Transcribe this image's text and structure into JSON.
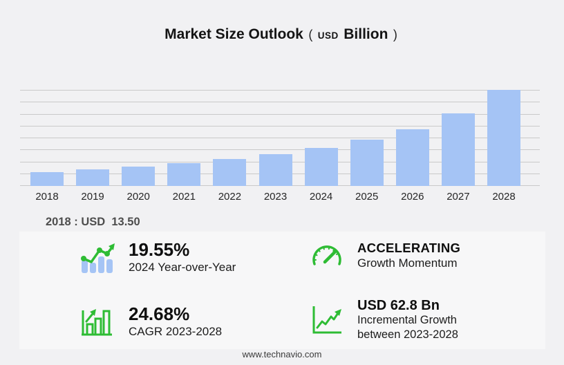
{
  "title": {
    "main": "Market Size Outlook",
    "paren_open": "(",
    "currency": "USD",
    "unit": "Billion",
    "paren_close": ")"
  },
  "baseline_note": {
    "text": "2018 : USD  13.50"
  },
  "chart_data": {
    "type": "bar",
    "title": "Market Size Outlook (USD Billion)",
    "categories": [
      "2018",
      "2019",
      "2020",
      "2021",
      "2022",
      "2023",
      "2024",
      "2025",
      "2026",
      "2027",
      "2028"
    ],
    "values": [
      13.5,
      16.0,
      18.9,
      22.3,
      26.4,
      31.2,
      37.3,
      45.0,
      55.3,
      71.0,
      94.0
    ],
    "unit": "USD Billion",
    "xlabel": "",
    "ylabel": "",
    "ylim": [
      0,
      94
    ],
    "grid": true,
    "legend": false,
    "annotations": [
      "2018 : USD 13.50"
    ]
  },
  "stats": {
    "yoy": {
      "value": "19.55%",
      "label": "2024 Year-over-Year",
      "icon": "bar-chart-trend-icon"
    },
    "momentum": {
      "value": "ACCELERATING",
      "label": "Growth Momentum",
      "icon": "speedometer-icon"
    },
    "cagr": {
      "value": "24.68%",
      "label": "CAGR 2023-2028",
      "icon": "growth-bars-icon"
    },
    "incremental": {
      "value": "USD 62.8 Bn",
      "label_line1": "Incremental Growth",
      "label_line2": "between 2023-2028",
      "icon": "trend-axes-icon"
    }
  },
  "footer": {
    "website": "www.technavio.com"
  },
  "colors": {
    "background": "#f1f1f3",
    "panel": "#f7f7f8",
    "bar": "#a5c4f5",
    "gridline": "#c9c9c9",
    "green": "#2ebc34",
    "title_text": "#141414",
    "note_text": "#4d4d4d",
    "label_text": "#1c1c1c"
  }
}
